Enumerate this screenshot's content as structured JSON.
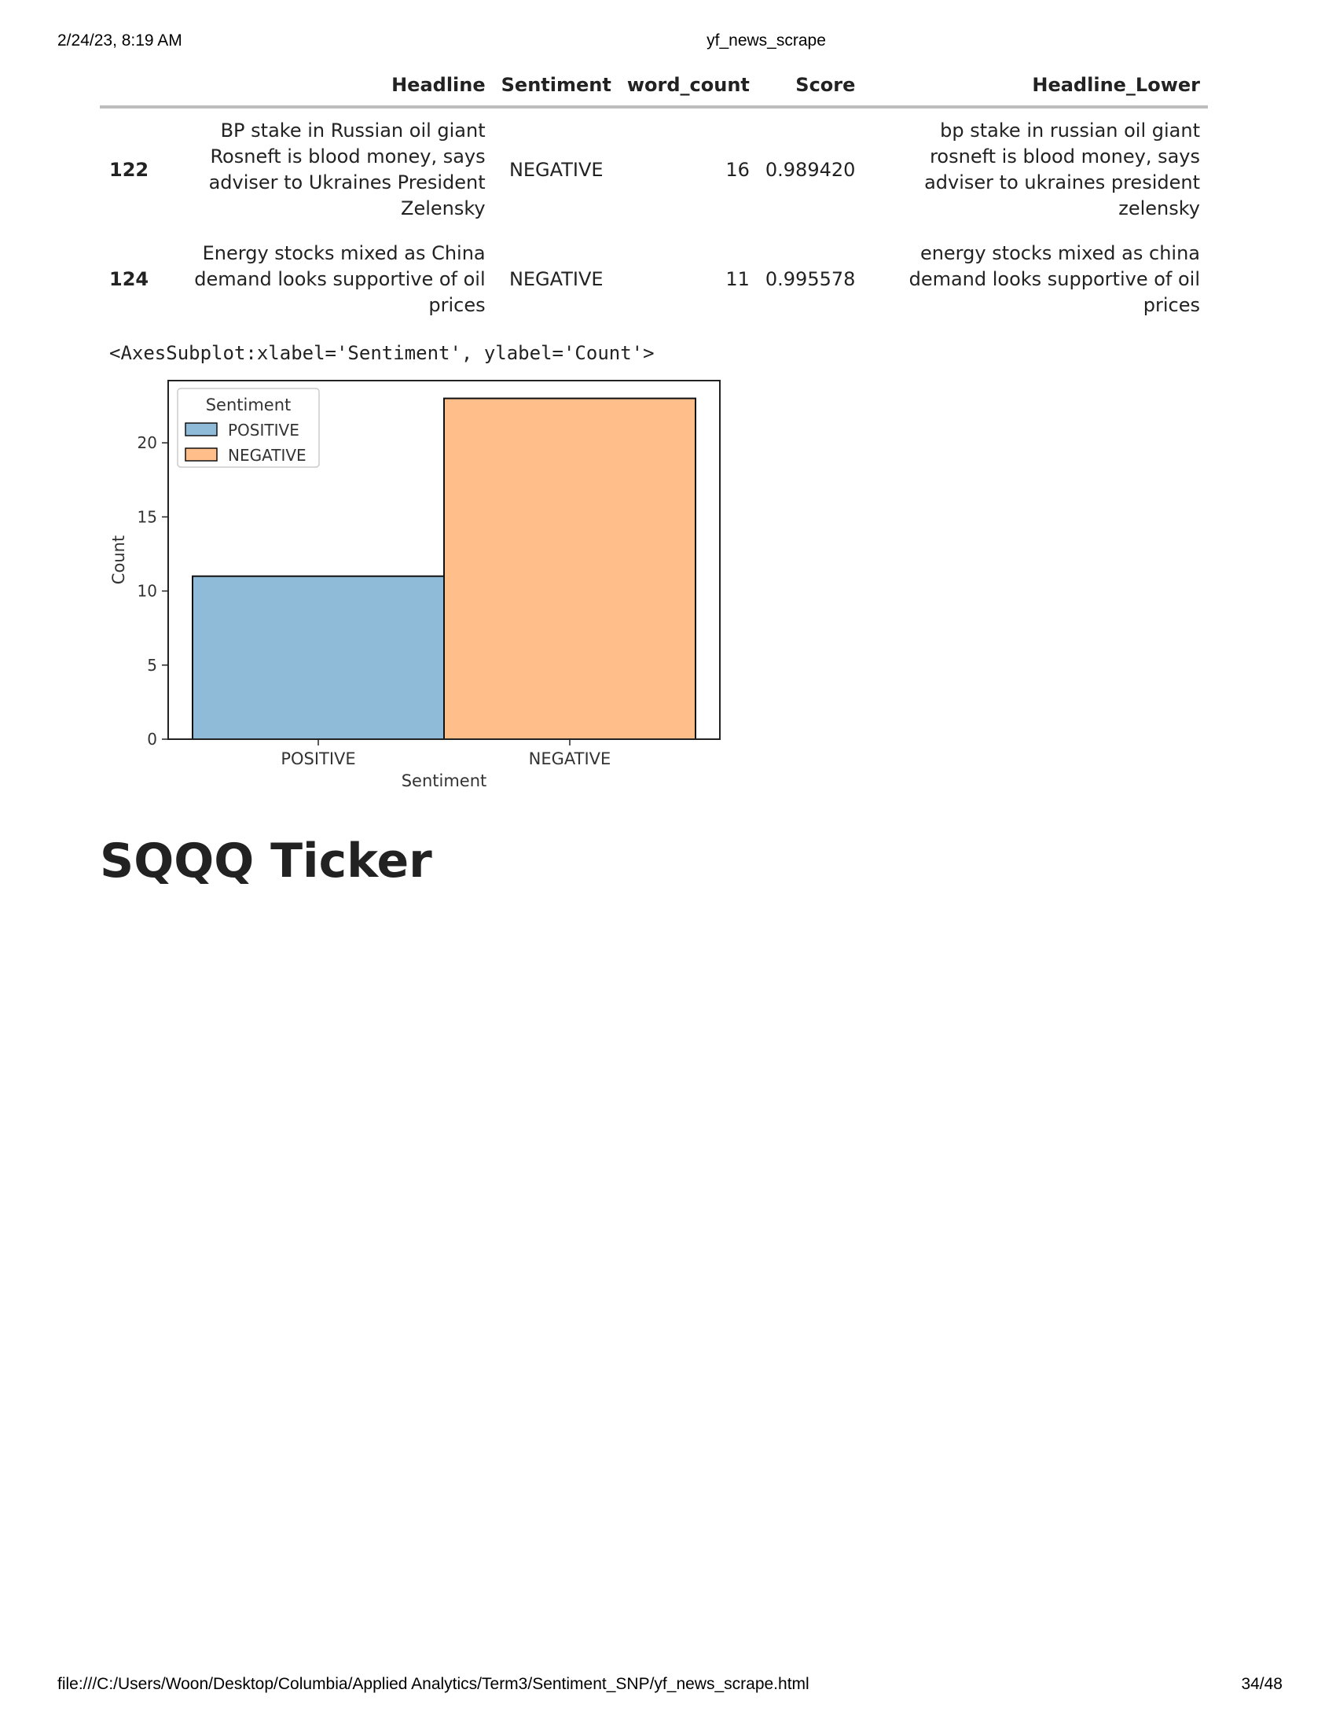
{
  "print_header": {
    "date": "2/24/23, 8:19 AM",
    "title": "yf_news_scrape"
  },
  "table": {
    "columns": [
      "Headline",
      "Sentiment",
      "word_count",
      "Score",
      "Headline_Lower"
    ],
    "rows": [
      {
        "index": "122",
        "headline": "BP stake in Russian oil giant Rosneft is blood money, says adviser to Ukraines President Zelensky",
        "sentiment": "NEGATIVE",
        "word_count": "16",
        "score": "0.989420",
        "headline_lower": "bp stake in russian oil giant rosneft is blood money, says adviser to ukraines president zelensky"
      },
      {
        "index": "124",
        "headline": "Energy stocks mixed as China demand looks supportive of oil prices",
        "sentiment": "NEGATIVE",
        "word_count": "11",
        "score": "0.995578",
        "headline_lower": "energy stocks mixed as china demand looks supportive of oil prices"
      }
    ]
  },
  "output_repr": "<AxesSubplot:xlabel='Sentiment', ylabel='Count'>",
  "chart_data": {
    "type": "bar",
    "categories": [
      "POSITIVE",
      "NEGATIVE"
    ],
    "values": [
      11,
      23
    ],
    "colors": [
      "#8fbbd9",
      "#ffbe8a"
    ],
    "xlabel": "Sentiment",
    "ylabel": "Count",
    "ylim": [
      0,
      24.2
    ],
    "yticks": [
      0,
      5,
      10,
      15,
      20
    ],
    "legend": {
      "title": "Sentiment",
      "entries": [
        "POSITIVE",
        "NEGATIVE"
      ],
      "placement": "top-left"
    },
    "grid": false
  },
  "section_title": "SQQQ Ticker",
  "print_footer": {
    "path": "file:///C:/Users/Woon/Desktop/Columbia/Applied Analytics/Term3/Sentiment_SNP/yf_news_scrape.html",
    "page": "34/48"
  }
}
